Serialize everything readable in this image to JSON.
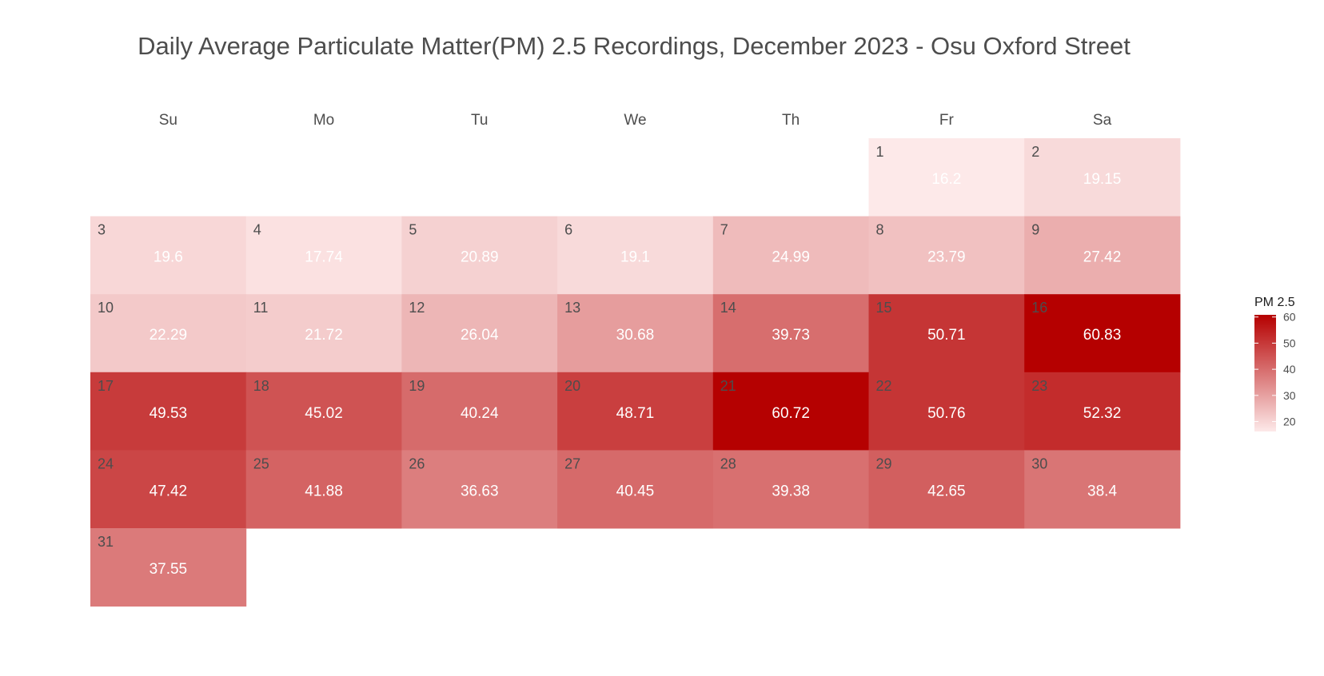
{
  "chart_data": {
    "type": "heatmap",
    "title": "Daily Average Particulate Matter(PM) 2.5 Recordings, December 2023 - Osu Oxford Street",
    "weekdays": [
      "Su",
      "Mo",
      "Tu",
      "We",
      "Th",
      "Fr",
      "Sa"
    ],
    "first_weekday_index": 5,
    "days": [
      1,
      2,
      3,
      4,
      5,
      6,
      7,
      8,
      9,
      10,
      11,
      12,
      13,
      14,
      15,
      16,
      17,
      18,
      19,
      20,
      21,
      22,
      23,
      24,
      25,
      26,
      27,
      28,
      29,
      30,
      31
    ],
    "values": [
      16.2,
      19.15,
      19.6,
      17.74,
      20.89,
      19.1,
      24.99,
      23.79,
      27.42,
      22.29,
      21.72,
      26.04,
      30.68,
      39.73,
      50.71,
      60.83,
      49.53,
      45.02,
      40.24,
      48.71,
      60.72,
      50.76,
      52.32,
      47.42,
      41.88,
      36.63,
      40.45,
      39.38,
      42.65,
      38.4,
      37.55
    ],
    "value_labels": [
      "16.2",
      "19.15",
      "19.6",
      "17.74",
      "20.89",
      "19.1",
      "24.99",
      "23.79",
      "27.42",
      "22.29",
      "21.72",
      "26.04",
      "30.68",
      "39.73",
      "50.71",
      "60.83",
      "49.53",
      "45.02",
      "40.24",
      "48.71",
      "60.72",
      "50.76",
      "52.32",
      "47.42",
      "41.88",
      "36.63",
      "40.45",
      "39.38",
      "42.65",
      "38.4",
      "37.55"
    ],
    "legend": {
      "title": "PM 2.5",
      "ticks": [
        20,
        30,
        40,
        50,
        60
      ],
      "range": [
        16.2,
        60.83
      ],
      "low_color": "#fde9e9",
      "high_color": "#b50000"
    }
  }
}
